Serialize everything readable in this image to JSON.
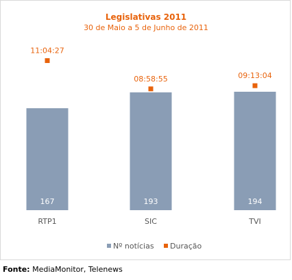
{
  "colors": {
    "title": "#e8630c",
    "bar": "#8a9db5",
    "marker": "#e8630c",
    "duration_label": "#e8630c",
    "axis_text": "#555555",
    "border": "#d9d9d9"
  },
  "chart_data": {
    "type": "bar",
    "title": "Legislativas 2011",
    "subtitle": "30 de Maio a 5 de Junho de 2011",
    "categories": [
      "RTP1",
      "SIC",
      "TVI"
    ],
    "series": [
      {
        "name": "Nº notícias",
        "kind": "bar",
        "values": [
          167,
          193,
          194
        ],
        "labels": [
          "167",
          "193",
          "194"
        ]
      },
      {
        "name": "Duração",
        "kind": "marker",
        "values_seconds": [
          39867,
          32335,
          33184
        ],
        "labels": [
          "11:04:27",
          "08:58:55",
          "09:13:04"
        ]
      }
    ],
    "legend": {
      "position": "bottom",
      "items": [
        "Nº notícias",
        "Duração"
      ]
    },
    "grid": false
  },
  "source": {
    "label": "Fonte:",
    "text": " MediaMonitor, Telenews"
  }
}
